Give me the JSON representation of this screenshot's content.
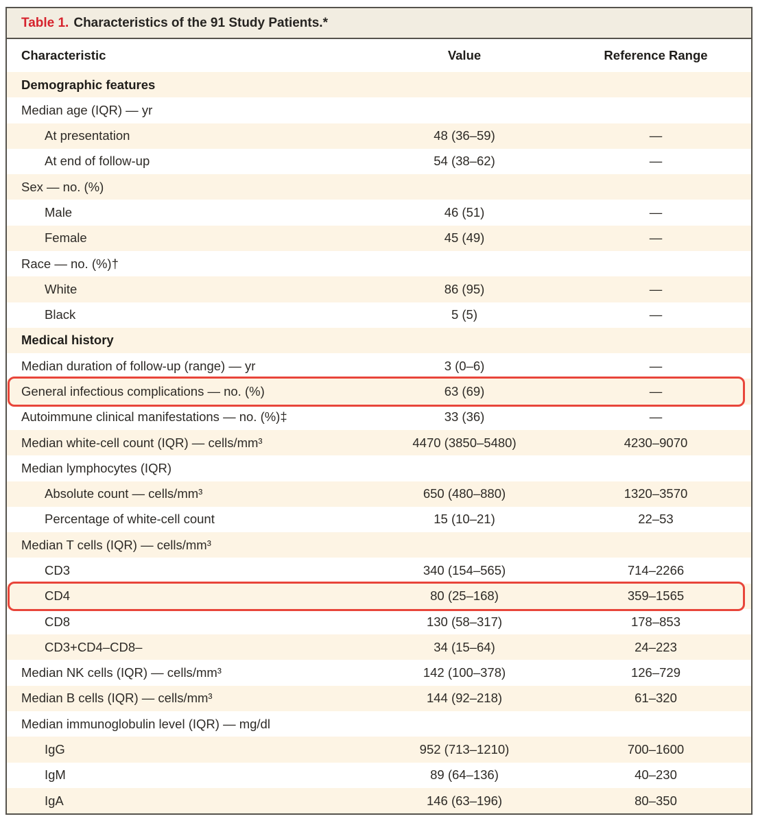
{
  "title": {
    "number": "Table 1.",
    "text": "Characteristics of the 91 Study Patients.*"
  },
  "columns": [
    "Characteristic",
    "Value",
    "Reference Range"
  ],
  "rows": [
    {
      "label": "Demographic features",
      "section": true,
      "value": "",
      "ref": ""
    },
    {
      "label": "Median age (IQR) — yr",
      "value": "",
      "ref": ""
    },
    {
      "label": "At presentation",
      "indent": true,
      "value": "48 (36–59)",
      "ref": "—"
    },
    {
      "label": "At end of follow-up",
      "indent": true,
      "value": "54 (38–62)",
      "ref": "—"
    },
    {
      "label": "Sex — no. (%)",
      "value": "",
      "ref": ""
    },
    {
      "label": "Male",
      "indent": true,
      "value": "46 (51)",
      "ref": "—"
    },
    {
      "label": "Female",
      "indent": true,
      "value": "45 (49)",
      "ref": "—"
    },
    {
      "label": "Race — no. (%)†",
      "value": "",
      "ref": ""
    },
    {
      "label": "White",
      "indent": true,
      "value": "86 (95)",
      "ref": "—"
    },
    {
      "label": "Black",
      "indent": true,
      "value": "5 (5)",
      "ref": "—"
    },
    {
      "label": "Medical history",
      "section": true,
      "value": "",
      "ref": ""
    },
    {
      "label": "Median duration of follow-up (range) — yr",
      "value": "3 (0–6)",
      "ref": "—"
    },
    {
      "label": "General infectious complications — no. (%)",
      "value": "63 (69)",
      "ref": "—",
      "highlight": true
    },
    {
      "label": "Autoimmune clinical manifestations — no. (%)‡",
      "value": "33 (36)",
      "ref": "—"
    },
    {
      "label": "Median white-cell count (IQR) — cells/mm³",
      "value": "4470 (3850–5480)",
      "ref": "4230–9070"
    },
    {
      "label": "Median lymphocytes (IQR)",
      "value": "",
      "ref": ""
    },
    {
      "label": "Absolute count — cells/mm³",
      "indent": true,
      "value": "650 (480–880)",
      "ref": "1320–3570"
    },
    {
      "label": "Percentage of white-cell count",
      "indent": true,
      "value": "15 (10–21)",
      "ref": "22–53"
    },
    {
      "label": "Median T cells (IQR) — cells/mm³",
      "value": "",
      "ref": ""
    },
    {
      "label": "CD3",
      "indent": true,
      "value": "340 (154–565)",
      "ref": "714–2266"
    },
    {
      "label": "CD4",
      "indent": true,
      "value": "80 (25–168)",
      "ref": "359–1565",
      "highlight": true
    },
    {
      "label": "CD8",
      "indent": true,
      "value": "130 (58–317)",
      "ref": "178–853"
    },
    {
      "label": "CD3+CD4–CD8–",
      "indent": true,
      "value": "34 (15–64)",
      "ref": "24–223"
    },
    {
      "label": "Median NK cells (IQR) — cells/mm³",
      "value": "142 (100–378)",
      "ref": "126–729"
    },
    {
      "label": "Median B cells (IQR) — cells/mm³",
      "value": "144 (92–218)",
      "ref": "61–320"
    },
    {
      "label": "Median immunoglobulin level (IQR) — mg/dl",
      "value": "",
      "ref": ""
    },
    {
      "label": "IgG",
      "indent": true,
      "value": "952 (713–1210)",
      "ref": "700–1600"
    },
    {
      "label": "IgM",
      "indent": true,
      "value": "89 (64–136)",
      "ref": "40–230"
    },
    {
      "label": "IgA",
      "indent": true,
      "value": "146 (63–196)",
      "ref": "80–350"
    }
  ],
  "colors": {
    "accent_red": "#d6232d",
    "highlight_outline": "#e8453a",
    "row_cream": "#fdf4e4",
    "titlebar_bg": "#f2ede1",
    "frame_border": "#55524c",
    "text": "#2d2a26"
  }
}
